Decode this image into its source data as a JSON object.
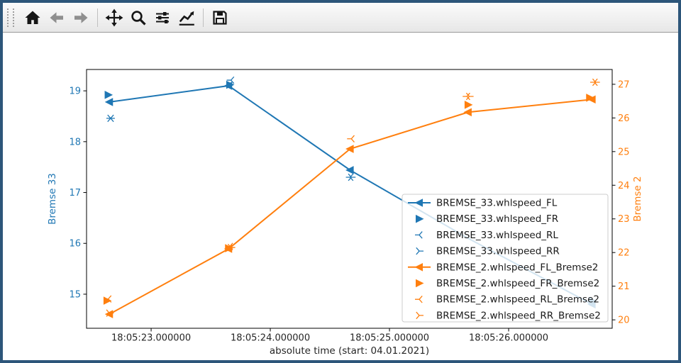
{
  "window": {
    "border_color": "#2d567a",
    "background": "#ffffff"
  },
  "toolbar": {
    "buttons": [
      {
        "id": "home",
        "icon": "home-icon",
        "enabled": true
      },
      {
        "id": "back",
        "icon": "back-arrow-icon",
        "enabled": false
      },
      {
        "id": "forward",
        "icon": "forward-arrow-icon",
        "enabled": false
      },
      {
        "id": "pan",
        "icon": "pan-arrows-icon",
        "enabled": true
      },
      {
        "id": "zoom",
        "icon": "magnifier-icon",
        "enabled": true
      },
      {
        "id": "configure-subplots",
        "icon": "sliders-icon",
        "enabled": true
      },
      {
        "id": "edit-parameters",
        "icon": "curve-icon",
        "enabled": true
      },
      {
        "id": "save",
        "icon": "floppy-disk-icon",
        "enabled": true
      }
    ]
  },
  "chart_data": {
    "type": "line",
    "xlabel": "absolute time (start: 04.01.2021)",
    "x_time_base": "18:05:00",
    "x_range_seconds": [
      22.458,
      26.869
    ],
    "x_ticks": [
      {
        "label": "18:05:23.000000",
        "t": 23
      },
      {
        "label": "18:05:24.000000",
        "t": 24
      },
      {
        "label": "18:05:25.000000",
        "t": 25
      },
      {
        "label": "18:05:26.000000",
        "t": 26
      }
    ],
    "left_axis": {
      "label": "Bremse 33",
      "color": "#1f77b4",
      "ticks": [
        15,
        16,
        17,
        18,
        19
      ],
      "range": [
        14.33,
        19.42
      ]
    },
    "right_axis": {
      "label": "Bremse 2",
      "color": "#ff7f0e",
      "ticks": [
        20,
        21,
        22,
        23,
        24,
        25,
        26,
        27
      ],
      "range": [
        19.75,
        27.44
      ]
    },
    "legend_position": "lower right",
    "series": [
      {
        "name": "BREMSE_33.whlspeed_FL",
        "axis": "left",
        "color": "#1f77b4",
        "marker": "tri_left_filled",
        "line": true,
        "x": [
          22.65,
          23.65,
          24.67,
          25.66,
          26.7
        ],
        "y": [
          18.78,
          19.1,
          17.44,
          16.1,
          14.8
        ],
        "marker_skip": [
          3
        ]
      },
      {
        "name": "BREMSE_33.whlspeed_FR",
        "axis": "left",
        "color": "#1f77b4",
        "marker": "tri_right_filled",
        "line": false,
        "x": [
          22.64,
          23.66,
          26.7
        ],
        "y": [
          18.92,
          19.12,
          14.87
        ]
      },
      {
        "name": "BREMSE_33.whlspeed_RL",
        "axis": "left",
        "color": "#1f77b4",
        "marker": "tri_left_thin",
        "line": false,
        "x": [
          22.66,
          23.67,
          24.67
        ],
        "y": [
          18.46,
          19.21,
          17.3
        ]
      },
      {
        "name": "BREMSE_33.whlspeed_RR",
        "axis": "left",
        "color": "#1f77b4",
        "marker": "tri_right_thin",
        "line": false,
        "x": [
          22.66,
          24.68
        ],
        "y": [
          18.46,
          17.3
        ]
      },
      {
        "name": "BREMSE_2.whlspeed_FL_Bremse2",
        "axis": "right",
        "color": "#ff7f0e",
        "marker": "tri_left_filled",
        "line": true,
        "x": [
          22.65,
          23.65,
          24.67,
          25.66,
          26.7
        ],
        "y": [
          20.17,
          22.11,
          25.08,
          26.17,
          26.55
        ]
      },
      {
        "name": "BREMSE_2.whlspeed_FR_Bremse2",
        "axis": "right",
        "color": "#ff7f0e",
        "marker": "tri_right_filled",
        "line": false,
        "x": [
          22.63,
          23.65,
          25.66,
          26.68
        ],
        "y": [
          20.57,
          22.13,
          26.39,
          26.6
        ]
      },
      {
        "name": "BREMSE_2.whlspeed_RL_Bremse2",
        "axis": "right",
        "color": "#ff7f0e",
        "marker": "tri_left_thin",
        "line": false,
        "x": [
          22.64,
          23.66,
          24.68,
          25.65,
          26.72
        ],
        "y": [
          20.62,
          22.18,
          25.38,
          26.64,
          27.06
        ]
      },
      {
        "name": "BREMSE_2.whlspeed_RR_Bremse2",
        "axis": "right",
        "color": "#ff7f0e",
        "marker": "tri_right_thin",
        "line": false,
        "x": [
          22.65,
          23.67,
          25.67,
          26.73
        ],
        "y": [
          20.2,
          22.15,
          26.64,
          27.06
        ]
      }
    ]
  }
}
